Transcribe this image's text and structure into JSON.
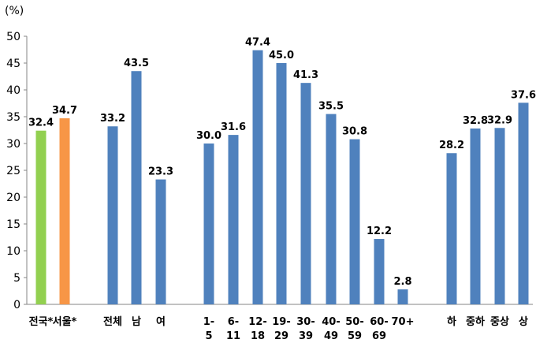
{
  "chart_data": {
    "type": "bar",
    "unit": "(%)",
    "ylim": [
      0,
      50
    ],
    "yticks": [
      0,
      5,
      10,
      15,
      20,
      25,
      30,
      35,
      40,
      45,
      50
    ],
    "grid": false,
    "bars": [
      {
        "label": [
          "전국*"
        ],
        "value": 32.4,
        "value_label": "32.4",
        "color": "#92d050"
      },
      {
        "label": [
          "서울*"
        ],
        "value": 34.7,
        "value_label": "34.7",
        "color": "#f79646"
      },
      {
        "label": [
          "전체"
        ],
        "value": 33.2,
        "value_label": "33.2",
        "color": "#4f81bd"
      },
      {
        "label": [
          "남"
        ],
        "value": 43.5,
        "value_label": "43.5",
        "color": "#4f81bd"
      },
      {
        "label": [
          "여"
        ],
        "value": 23.3,
        "value_label": "23.3",
        "color": "#4f81bd"
      },
      {
        "label": [
          "1-",
          "5"
        ],
        "value": 30.0,
        "value_label": "30.0",
        "color": "#4f81bd"
      },
      {
        "label": [
          "6-",
          "11"
        ],
        "value": 31.6,
        "value_label": "31.6",
        "color": "#4f81bd"
      },
      {
        "label": [
          "12-",
          "18"
        ],
        "value": 47.4,
        "value_label": "47.4",
        "color": "#4f81bd"
      },
      {
        "label": [
          "19-",
          "29"
        ],
        "value": 45.0,
        "value_label": "45.0",
        "color": "#4f81bd"
      },
      {
        "label": [
          "30-",
          "39"
        ],
        "value": 41.3,
        "value_label": "41.3",
        "color": "#4f81bd"
      },
      {
        "label": [
          "40-",
          "49"
        ],
        "value": 35.5,
        "value_label": "35.5",
        "color": "#4f81bd"
      },
      {
        "label": [
          "50-",
          "59"
        ],
        "value": 30.8,
        "value_label": "30.8",
        "color": "#4f81bd"
      },
      {
        "label": [
          "60-",
          "69"
        ],
        "value": 12.2,
        "value_label": "12.2",
        "color": "#4f81bd"
      },
      {
        "label": [
          "70+"
        ],
        "value": 2.8,
        "value_label": "2.8",
        "color": "#4f81bd"
      },
      {
        "label": [
          "하"
        ],
        "value": 28.2,
        "value_label": "28.2",
        "color": "#4f81bd"
      },
      {
        "label": [
          "중하"
        ],
        "value": 32.8,
        "value_label": "32.8",
        "color": "#4f81bd"
      },
      {
        "label": [
          "중상"
        ],
        "value": 32.9,
        "value_label": "32.9",
        "color": "#4f81bd"
      },
      {
        "label": [
          "상"
        ],
        "value": 37.6,
        "value_label": "37.6",
        "color": "#4f81bd"
      }
    ]
  }
}
